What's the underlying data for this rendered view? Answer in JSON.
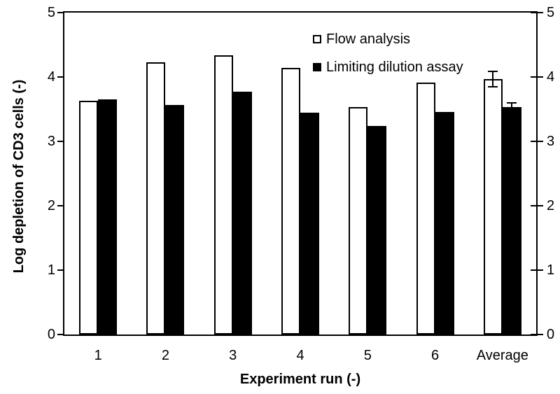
{
  "chart_data": {
    "type": "bar",
    "title": "",
    "xlabel": "Experiment run (-)",
    "ylabel": "Log depletion of CD3 cells (-)",
    "categories": [
      "1",
      "2",
      "3",
      "4",
      "5",
      "6",
      "Average"
    ],
    "series": [
      {
        "name": "Flow analysis",
        "fill": "#ffffff",
        "outline": "#000000",
        "values": [
          3.63,
          4.23,
          4.34,
          4.14,
          3.53,
          3.91,
          3.97
        ],
        "errors": [
          null,
          null,
          null,
          null,
          null,
          null,
          0.12
        ]
      },
      {
        "name": "Limiting dilution assay",
        "fill": "#000000",
        "outline": "#000000",
        "values": [
          3.65,
          3.57,
          3.77,
          3.45,
          3.24,
          3.46,
          3.53
        ],
        "errors": [
          null,
          null,
          null,
          null,
          null,
          null,
          0.07
        ]
      }
    ],
    "ylim": [
      0,
      5
    ],
    "yticks": [
      0,
      1,
      2,
      3,
      4,
      5
    ],
    "y_axis_sides": "both",
    "grid": false,
    "legend_position": "inside-top-center",
    "axis_color": "#000000",
    "background_color": "#ffffff"
  }
}
